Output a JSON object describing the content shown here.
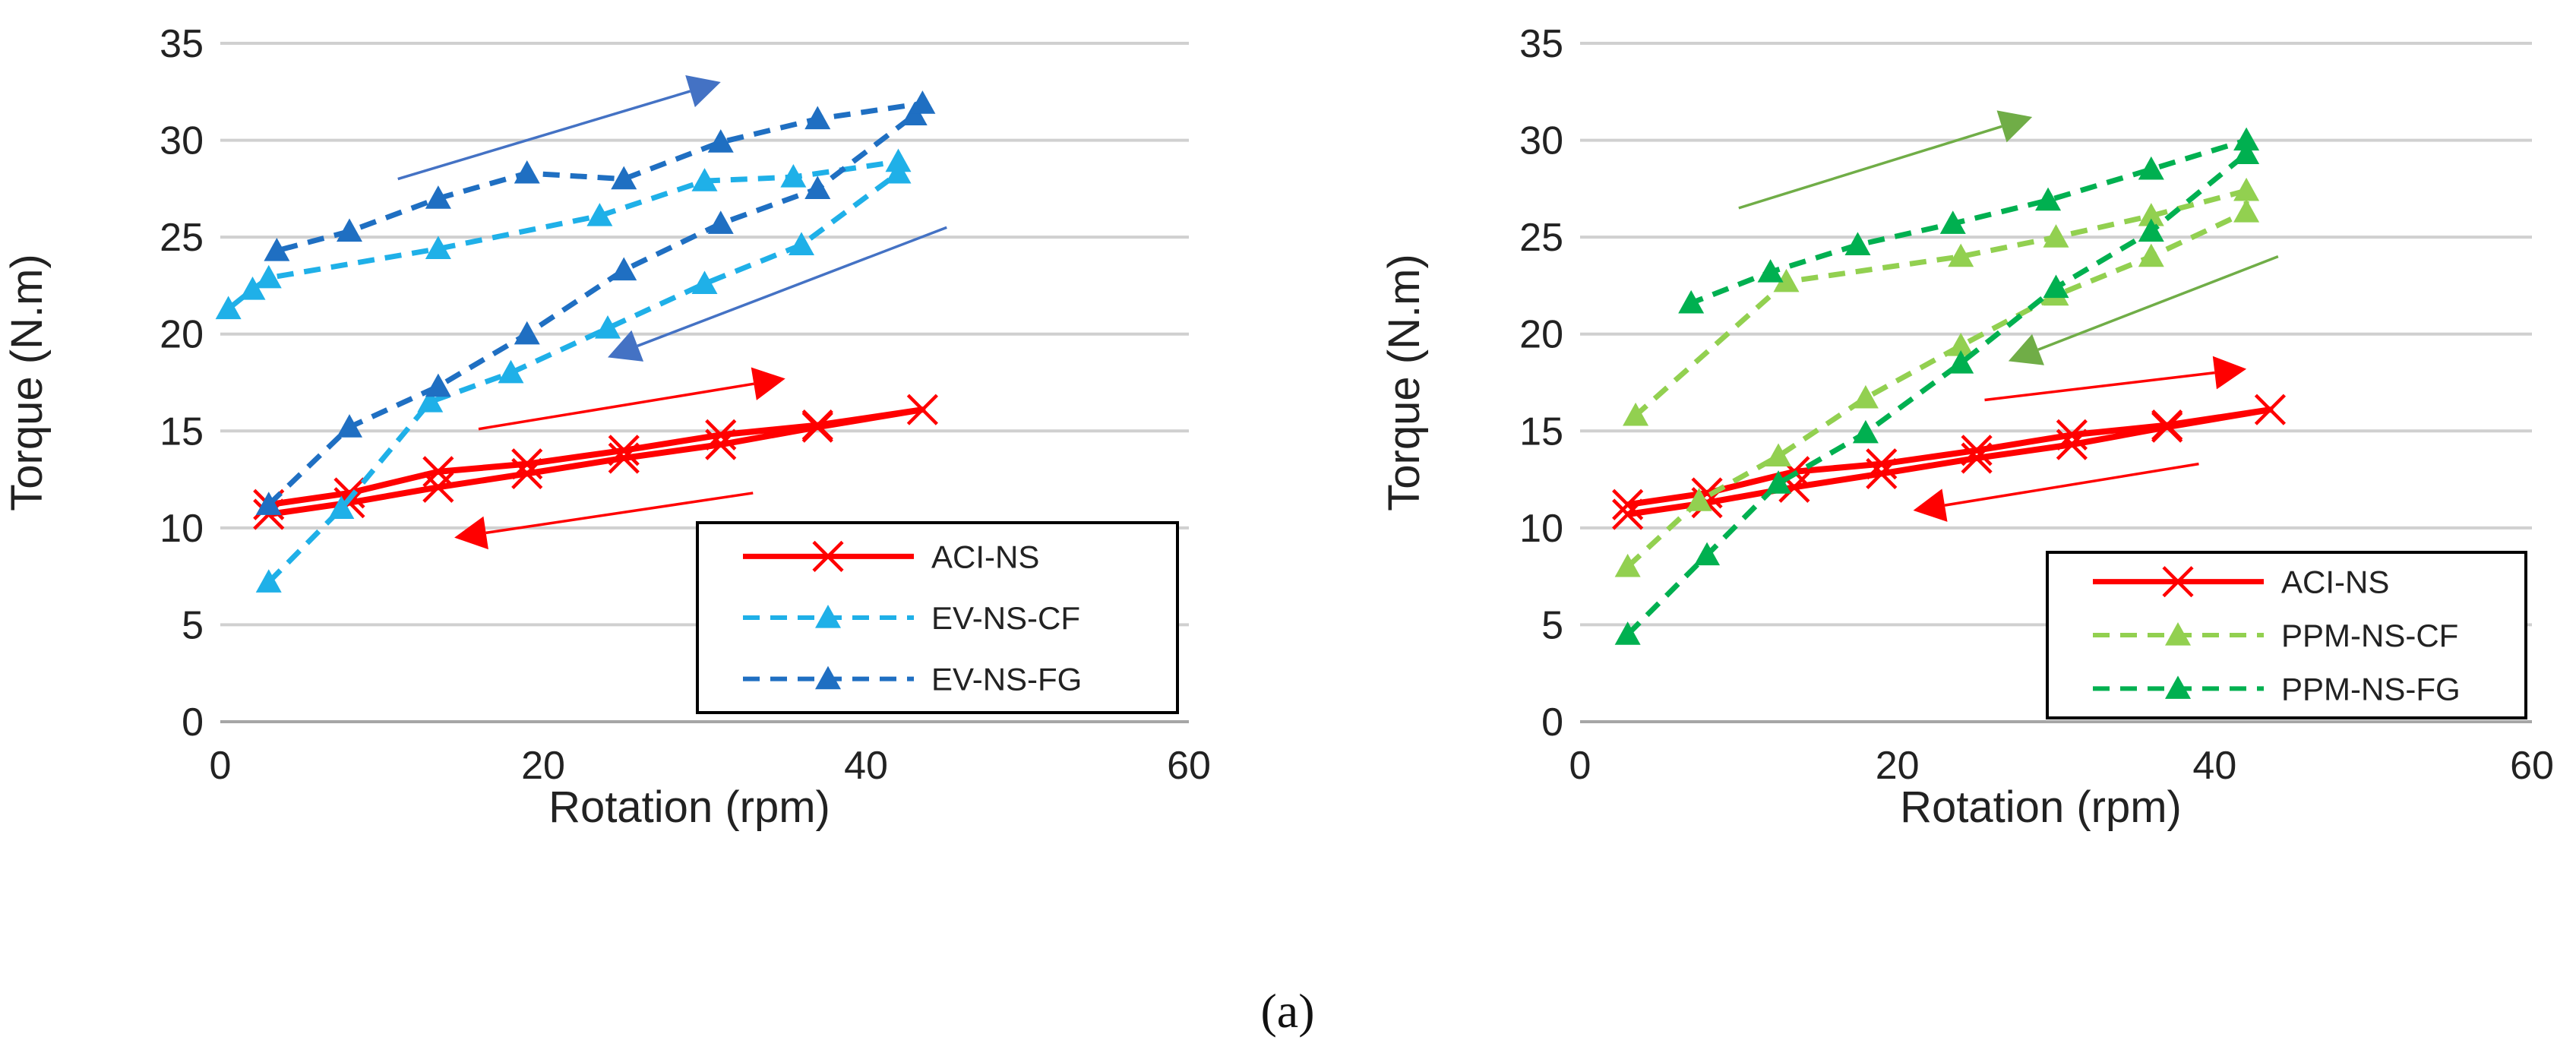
{
  "caption": "(a)",
  "chart_data": [
    {
      "type": "line",
      "xlabel": "Rotation (rpm)",
      "ylabel": "Torque (N.m)",
      "xlim": [
        0,
        60
      ],
      "ylim": [
        0,
        35
      ],
      "xticks": [
        "0",
        "20",
        "40",
        "60"
      ],
      "yticks": [
        "0",
        "5",
        "10",
        "15",
        "20",
        "25",
        "30",
        "35"
      ],
      "grid": "horizontal",
      "legend_position": "bottom-right",
      "series": [
        {
          "name": "ACI-NS",
          "color": "#ff0000",
          "style": "solid",
          "marker": "x",
          "x": [
            3,
            8,
            13.5,
            19,
            25,
            31,
            37,
            43.5,
            37,
            31,
            25,
            19,
            13.5,
            8,
            3
          ],
          "y": [
            11.2,
            11.8,
            12.9,
            13.3,
            14,
            14.8,
            15.3,
            16.1,
            15.2,
            14.3,
            13.6,
            12.8,
            12.1,
            11.3,
            10.7
          ]
        },
        {
          "name": "EV-NS-CF",
          "color": "#1fb0e8",
          "style": "dashed",
          "marker": "triangle",
          "x": [
            3,
            7.5,
            13,
            18,
            24,
            30,
            36,
            42,
            42,
            35.5,
            30,
            23.5,
            13.5,
            3,
            2,
            0.5
          ],
          "y": [
            7.2,
            11,
            16.5,
            18,
            20.3,
            22.6,
            24.6,
            28.3,
            28.9,
            28.1,
            27.9,
            26.1,
            24.4,
            22.9,
            22.3,
            21.3
          ]
        },
        {
          "name": "EV-NS-FG",
          "color": "#1f6fc2",
          "style": "dashed",
          "marker": "triangle",
          "x": [
            3,
            8,
            13.5,
            19,
            25,
            31,
            37,
            43,
            43.5,
            37,
            31,
            25,
            19,
            13.5,
            8,
            3.5
          ],
          "y": [
            11.2,
            15.2,
            17.3,
            20,
            23.3,
            25.7,
            27.5,
            31.3,
            31.9,
            31.1,
            29.9,
            28,
            28.3,
            27,
            25.3,
            24.3
          ]
        }
      ],
      "annotations": [
        {
          "kind": "arrow",
          "color": "#4472c4",
          "from": [
            11,
            28
          ],
          "to": [
            31,
            33
          ]
        },
        {
          "kind": "arrow",
          "color": "#4472c4",
          "from": [
            45,
            25.5
          ],
          "to": [
            24,
            18.8
          ]
        },
        {
          "kind": "arrow",
          "color": "#ff0000",
          "from": [
            16,
            15.1
          ],
          "to": [
            35,
            17.7
          ]
        },
        {
          "kind": "arrow",
          "color": "#ff0000",
          "from": [
            33,
            11.8
          ],
          "to": [
            14.5,
            9.5
          ]
        }
      ]
    },
    {
      "type": "line",
      "xlabel": "Rotation (rpm)",
      "ylabel": "Torque (N.m)",
      "xlim": [
        0,
        60
      ],
      "ylim": [
        0,
        35
      ],
      "xticks": [
        "0",
        "20",
        "40",
        "60"
      ],
      "yticks": [
        "0",
        "5",
        "10",
        "15",
        "20",
        "25",
        "30",
        "35"
      ],
      "grid": "horizontal",
      "legend_position": "bottom-right",
      "series": [
        {
          "name": "ACI-NS",
          "color": "#ff0000",
          "style": "solid",
          "marker": "x",
          "x": [
            3,
            8,
            13.5,
            19,
            25,
            31,
            37,
            43.5,
            37,
            31,
            25,
            19,
            13.5,
            8,
            3
          ],
          "y": [
            11.2,
            11.8,
            12.9,
            13.3,
            14,
            14.8,
            15.3,
            16.1,
            15.2,
            14.3,
            13.6,
            12.8,
            12.1,
            11.3,
            10.7
          ]
        },
        {
          "name": "PPM-NS-CF",
          "color": "#92d050",
          "style": "dashed",
          "marker": "triangle",
          "x": [
            3,
            7.5,
            12.5,
            18,
            24,
            30,
            36,
            42,
            42,
            36,
            30,
            24,
            13,
            3.5
          ],
          "y": [
            8,
            11.4,
            13.7,
            16.7,
            19.4,
            22,
            24,
            26.3,
            27.4,
            26.1,
            25,
            24,
            22.7,
            15.8
          ]
        },
        {
          "name": "PPM-NS-FG",
          "color": "#00b050",
          "style": "dashed",
          "marker": "triangle",
          "x": [
            3,
            8,
            12.5,
            18,
            24,
            30,
            36,
            42,
            42,
            36,
            29.5,
            23.5,
            17.5,
            12,
            7
          ],
          "y": [
            4.5,
            8.6,
            12.3,
            14.9,
            18.5,
            22.4,
            25.3,
            29.3,
            30,
            28.5,
            26.9,
            25.7,
            24.6,
            23.2,
            21.6
          ]
        }
      ],
      "annotations": [
        {
          "kind": "arrow",
          "color": "#70ad47",
          "from": [
            10,
            26.5
          ],
          "to": [
            28.5,
            31.2
          ]
        },
        {
          "kind": "arrow",
          "color": "#70ad47",
          "from": [
            44,
            24
          ],
          "to": [
            27,
            18.6
          ]
        },
        {
          "kind": "arrow",
          "color": "#ff0000",
          "from": [
            25.5,
            16.6
          ],
          "to": [
            42,
            18.2
          ]
        },
        {
          "kind": "arrow",
          "color": "#ff0000",
          "from": [
            39,
            13.3
          ],
          "to": [
            21,
            10.9
          ]
        }
      ]
    }
  ]
}
